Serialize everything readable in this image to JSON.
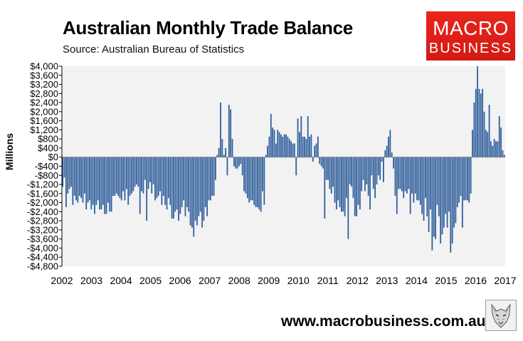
{
  "title": "Australian Monthly Trade Balance",
  "subtitle": "Source: Australian Bureau of Statistics",
  "logo": {
    "line1": "MACRO",
    "line2": "BUSINESS",
    "color": "#e0211a"
  },
  "footer": "www.macrobusiness.com.au",
  "wolf_icon": "wolf-logo-icon",
  "chart_data": {
    "type": "bar",
    "title": "Australian Monthly Trade Balance",
    "xlabel": "",
    "ylabel": "Millions",
    "ylim": [
      -4800,
      4000
    ],
    "xlim": [
      2002,
      2017
    ],
    "grid": false,
    "legend": "none",
    "bar_color": "#2f5e9c",
    "y_ticks": [
      4000,
      3600,
      3200,
      2800,
      2400,
      2000,
      1600,
      1200,
      800,
      400,
      0,
      -400,
      -800,
      -1200,
      -1600,
      -2000,
      -2400,
      -2800,
      -3200,
      -3600,
      -4000,
      -4400,
      -4800
    ],
    "y_tick_labels": [
      "$4,000",
      "$3,600",
      "$3,200",
      "$2,800",
      "$2,400",
      "$2,000",
      "$1,600",
      "$1,200",
      "$800",
      "$400",
      "$0",
      "-$400",
      "-$800",
      "-$1,200",
      "-$1,600",
      "-$2,000",
      "-$2,400",
      "-$2,800",
      "-$3,200",
      "-$3,600",
      "-$4,000",
      "-$4,400",
      "-$4,800"
    ],
    "x_ticks": [
      "2002",
      "2003",
      "2004",
      "2005",
      "2006",
      "2007",
      "2008",
      "2009",
      "2010",
      "2011",
      "2012",
      "2013",
      "2014",
      "2015",
      "2016",
      "2017"
    ],
    "start": "2002-01",
    "frequency": "monthly",
    "values": [
      -1300,
      -900,
      -2200,
      -1600,
      -1400,
      -1300,
      -2100,
      -1700,
      -1900,
      -2000,
      -1700,
      -1800,
      -2000,
      -1600,
      -2300,
      -2000,
      -1900,
      -2300,
      -2100,
      -2500,
      -2100,
      -1900,
      -2300,
      -2300,
      -2100,
      -2500,
      -2500,
      -2000,
      -2400,
      -2400,
      -1700,
      -1700,
      -1600,
      -1700,
      -1800,
      -1900,
      -1500,
      -1900,
      -1400,
      -2100,
      -1700,
      -1600,
      -1500,
      -1300,
      -1200,
      -1300,
      -2500,
      -1500,
      -1600,
      -1000,
      -2800,
      -1400,
      -1100,
      -1600,
      -1200,
      -1900,
      -1800,
      -1700,
      -1500,
      -2100,
      -1700,
      -2100,
      -2300,
      -1800,
      -2100,
      -2700,
      -2700,
      -2400,
      -2300,
      -2800,
      -2500,
      -2200,
      -1900,
      -2600,
      -2200,
      -2400,
      -3000,
      -3100,
      -3500,
      -2800,
      -3000,
      -2600,
      -2400,
      -3100,
      -2800,
      -2200,
      -2600,
      -1900,
      -1900,
      -1700,
      -1700,
      -1000,
      100,
      400,
      2400,
      800,
      100,
      400,
      -800,
      2300,
      2100,
      800,
      -400,
      -500,
      -500,
      -400,
      -300,
      -800,
      -1500,
      -1600,
      -1800,
      -2000,
      -1900,
      -1900,
      -2100,
      -2200,
      -2200,
      -2300,
      -2400,
      -1500,
      -2100,
      100,
      500,
      900,
      1900,
      1300,
      1200,
      600,
      1200,
      1100,
      1000,
      900,
      1000,
      1000,
      900,
      800,
      700,
      600,
      600,
      -800,
      1700,
      1100,
      1800,
      900,
      900,
      800,
      1800,
      900,
      1000,
      -200,
      500,
      600,
      900,
      -300,
      -400,
      -500,
      -2700,
      -1000,
      -1000,
      -1400,
      -1600,
      -1300,
      -2000,
      -2300,
      -1900,
      -2200,
      -2400,
      -2400,
      -2600,
      -1800,
      -3600,
      -1200,
      -1300,
      -1800,
      -2600,
      -2600,
      -2100,
      -2300,
      -1500,
      -1000,
      -1500,
      -1200,
      -1700,
      -2300,
      -800,
      -1400,
      -1800,
      -1200,
      -800,
      -1000,
      -200,
      -1100,
      300,
      500,
      900,
      1200,
      200,
      -500,
      -1700,
      -2500,
      -1400,
      -1400,
      -1500,
      -1800,
      -1500,
      -1600,
      -1400,
      -2500,
      -1600,
      -2000,
      -1600,
      -1900,
      -1900,
      -2100,
      -2500,
      -2800,
      -1800,
      -2600,
      -3300,
      -2300,
      -4100,
      -3500,
      -3600,
      -2100,
      -2600,
      -3800,
      -3400,
      -3100,
      -2500,
      -3100,
      -2400,
      -4200,
      -3800,
      -3100,
      -2900,
      -2200,
      -2000,
      -1700,
      -3100,
      -1900,
      -1900,
      -1900,
      -2000,
      -1600,
      1200,
      2400,
      3000,
      4000,
      3000,
      2800,
      3000,
      2000,
      1200,
      1100,
      2300,
      700,
      500,
      800,
      700,
      700,
      1800,
      1300,
      300,
      100
    ]
  }
}
